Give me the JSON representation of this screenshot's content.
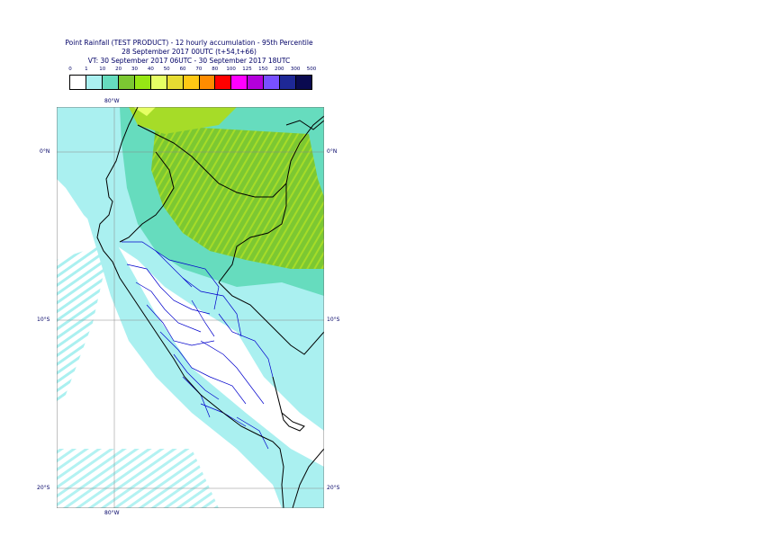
{
  "title": {
    "line1": "Point Rainfall (TEST PRODUCT) - 12 hourly accumulation - 95th Percentile",
    "line2": "28 September 2017 00UTC (t+54,t+66)",
    "line3": "VT: 30 September 2017 06UTC - 30 September 2017 18UTC"
  },
  "legend": {
    "labels": [
      "0",
      "1",
      "10",
      "20",
      "30",
      "40",
      "50",
      "60",
      "70",
      "80",
      "100",
      "125",
      "150",
      "200",
      "300",
      "500"
    ],
    "colors": [
      "#ffffff",
      "#aaf0f0",
      "#66dcbe",
      "#7cc832",
      "#96e614",
      "#e6ff64",
      "#e6dc32",
      "#ffc814",
      "#ff8c00",
      "#ff0000",
      "#ff00ff",
      "#b400dc",
      "#7850ff",
      "#1e2896",
      "#0a0a50"
    ]
  },
  "axes": {
    "lon_top": "80°W",
    "lon_bottom": "80°W",
    "lat_left": [
      "0°N",
      "10°S",
      "20°S"
    ],
    "lat_right": [
      "0°N",
      "10°S",
      "20°S"
    ]
  },
  "map_colors": {
    "ocean": "#ffffff",
    "light": "#aaf0f0",
    "mid": "#66dcbe",
    "green": "#7cc832",
    "yellowgreen": "#a6dc28",
    "yellow": "#e6ff64",
    "country_border": "#000000",
    "region_border": "#0000cc",
    "grid": "#888888"
  }
}
